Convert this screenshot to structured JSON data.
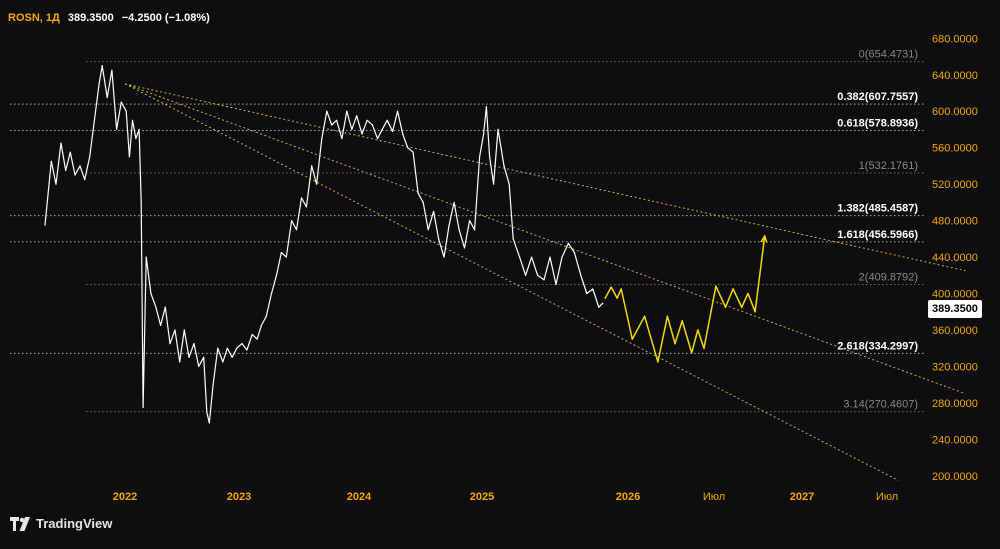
{
  "legend": {
    "symbol": "ROSN, 1Д",
    "price": "389.3500",
    "change": "−4.2500 (−1.08%)"
  },
  "last_price_badge": "389.3500",
  "branding": {
    "logo_text": "TradingView"
  },
  "colors": {
    "background": "#0e0e10",
    "price_line": "#ffffff",
    "forecast": "#f5d90a",
    "trendlines": "#c9b42a",
    "axis_text": "#f7a600",
    "fib_grid": "#8a8a8a"
  },
  "chart_data": {
    "type": "line",
    "ylim": [
      190,
      700
    ],
    "x_axis_ticks": [
      "2022",
      "2023",
      "2024",
      "2025",
      "2026",
      "Июл",
      "2027",
      "Июл"
    ],
    "y_axis_ticks": [
      "680.0000",
      "640.0000",
      "600.0000",
      "560.0000",
      "520.0000",
      "480.0000",
      "440.0000",
      "400.0000",
      "360.0000",
      "320.0000",
      "280.0000",
      "240.0000",
      "200.0000"
    ],
    "fib_levels": [
      {
        "label": "0(654.4731)",
        "value": 654.4731,
        "emphasis": false
      },
      {
        "label": "0.382(607.7557)",
        "value": 607.7557,
        "emphasis": true
      },
      {
        "label": "0.618(578.8936)",
        "value": 578.8936,
        "emphasis": true
      },
      {
        "label": "1(532.1761)",
        "value": 532.1761,
        "emphasis": false
      },
      {
        "label": "1.382(485.4587)",
        "value": 485.4587,
        "emphasis": true
      },
      {
        "label": "1.618(456.5966)",
        "value": 456.5966,
        "emphasis": true
      },
      {
        "label": "2(409.8792)",
        "value": 409.8792,
        "emphasis": false
      },
      {
        "label": "2.618(334.2997)",
        "value": 334.2997,
        "emphasis": true
      },
      {
        "label": "3.14(270.4607)",
        "value": 270.4607,
        "emphasis": false
      }
    ],
    "series": [
      {
        "values": [
          [
            "2021-04-20",
            475
          ],
          [
            "2021-05-10",
            545
          ],
          [
            "2021-05-25",
            520
          ],
          [
            "2021-06-10",
            565
          ],
          [
            "2021-06-25",
            535
          ],
          [
            "2021-07-10",
            555
          ],
          [
            "2021-07-25",
            530
          ],
          [
            "2021-08-10",
            540
          ],
          [
            "2021-08-25",
            525
          ],
          [
            "2021-09-10",
            550
          ],
          [
            "2021-09-25",
            590
          ],
          [
            "2021-10-10",
            630
          ],
          [
            "2021-10-20",
            650
          ],
          [
            "2021-11-05",
            615
          ],
          [
            "2021-11-20",
            645
          ],
          [
            "2021-12-05",
            580
          ],
          [
            "2021-12-20",
            610
          ],
          [
            "2022-01-05",
            600
          ],
          [
            "2022-01-15",
            550
          ],
          [
            "2022-01-25",
            590
          ],
          [
            "2022-02-05",
            570
          ],
          [
            "2022-02-15",
            580
          ],
          [
            "2022-02-22",
            500
          ],
          [
            "2022-02-28",
            275
          ],
          [
            "2022-03-10",
            440
          ],
          [
            "2022-03-25",
            400
          ],
          [
            "2022-04-10",
            385
          ],
          [
            "2022-04-25",
            365
          ],
          [
            "2022-05-10",
            385
          ],
          [
            "2022-05-25",
            345
          ],
          [
            "2022-06-10",
            360
          ],
          [
            "2022-06-25",
            325
          ],
          [
            "2022-07-10",
            360
          ],
          [
            "2022-07-25",
            330
          ],
          [
            "2022-08-10",
            345
          ],
          [
            "2022-08-25",
            320
          ],
          [
            "2022-09-10",
            330
          ],
          [
            "2022-09-20",
            270
          ],
          [
            "2022-09-28",
            258
          ],
          [
            "2022-10-10",
            300
          ],
          [
            "2022-10-25",
            340
          ],
          [
            "2022-11-10",
            325
          ],
          [
            "2022-11-25",
            340
          ],
          [
            "2022-12-10",
            330
          ],
          [
            "2022-12-25",
            340
          ],
          [
            "2023-01-10",
            345
          ],
          [
            "2023-01-25",
            338
          ],
          [
            "2023-02-10",
            355
          ],
          [
            "2023-02-25",
            350
          ],
          [
            "2023-03-10",
            365
          ],
          [
            "2023-03-25",
            375
          ],
          [
            "2023-04-10",
            400
          ],
          [
            "2023-04-25",
            420
          ],
          [
            "2023-05-10",
            445
          ],
          [
            "2023-05-25",
            440
          ],
          [
            "2023-06-10",
            480
          ],
          [
            "2023-06-25",
            470
          ],
          [
            "2023-07-10",
            505
          ],
          [
            "2023-07-25",
            495
          ],
          [
            "2023-08-10",
            540
          ],
          [
            "2023-08-25",
            520
          ],
          [
            "2023-09-10",
            570
          ],
          [
            "2023-09-25",
            600
          ],
          [
            "2023-10-10",
            585
          ],
          [
            "2023-10-25",
            590
          ],
          [
            "2023-11-10",
            570
          ],
          [
            "2023-11-25",
            600
          ],
          [
            "2023-12-10",
            580
          ],
          [
            "2023-12-25",
            595
          ],
          [
            "2024-01-10",
            575
          ],
          [
            "2024-01-25",
            590
          ],
          [
            "2024-02-10",
            585
          ],
          [
            "2024-02-25",
            570
          ],
          [
            "2024-03-10",
            580
          ],
          [
            "2024-03-25",
            590
          ],
          [
            "2024-04-10",
            578
          ],
          [
            "2024-04-25",
            600
          ],
          [
            "2024-05-10",
            575
          ],
          [
            "2024-05-25",
            560
          ],
          [
            "2024-06-10",
            555
          ],
          [
            "2024-06-25",
            510
          ],
          [
            "2024-07-10",
            500
          ],
          [
            "2024-07-25",
            470
          ],
          [
            "2024-08-10",
            490
          ],
          [
            "2024-08-25",
            460
          ],
          [
            "2024-09-10",
            440
          ],
          [
            "2024-09-25",
            475
          ],
          [
            "2024-10-10",
            500
          ],
          [
            "2024-10-25",
            470
          ],
          [
            "2024-11-10",
            450
          ],
          [
            "2024-11-25",
            480
          ],
          [
            "2024-12-10",
            470
          ],
          [
            "2024-12-25",
            550
          ],
          [
            "2025-01-05",
            575
          ],
          [
            "2025-01-12",
            605
          ],
          [
            "2025-01-20",
            550
          ],
          [
            "2025-01-30",
            520
          ],
          [
            "2025-02-10",
            580
          ],
          [
            "2025-02-25",
            540
          ],
          [
            "2025-03-10",
            520
          ],
          [
            "2025-03-20",
            460
          ],
          [
            "2025-04-05",
            440
          ],
          [
            "2025-04-20",
            420
          ],
          [
            "2025-05-05",
            440
          ],
          [
            "2025-05-20",
            420
          ],
          [
            "2025-06-05",
            415
          ],
          [
            "2025-06-20",
            440
          ],
          [
            "2025-07-05",
            410
          ],
          [
            "2025-07-20",
            440
          ],
          [
            "2025-08-05",
            455
          ],
          [
            "2025-08-20",
            445
          ],
          [
            "2025-09-05",
            420
          ],
          [
            "2025-09-20",
            400
          ],
          [
            "2025-10-05",
            405
          ],
          [
            "2025-10-20",
            385
          ],
          [
            "2025-10-30",
            389.35
          ]
        ]
      },
      {
        "values": [
          [
            "2025-11-05",
            395
          ],
          [
            "2025-11-20",
            407
          ],
          [
            "2025-12-05",
            395
          ],
          [
            "2025-12-15",
            405
          ],
          [
            "2026-01-10",
            350
          ],
          [
            "2026-02-05",
            375
          ],
          [
            "2026-03-05",
            325
          ],
          [
            "2026-03-25",
            375
          ],
          [
            "2026-04-10",
            345
          ],
          [
            "2026-04-25",
            370
          ],
          [
            "2026-05-15",
            335
          ],
          [
            "2026-05-28",
            360
          ],
          [
            "2026-06-10",
            340
          ],
          [
            "2026-07-05",
            408
          ],
          [
            "2026-07-25",
            385
          ],
          [
            "2026-08-10",
            405
          ],
          [
            "2026-08-28",
            385
          ],
          [
            "2026-09-10",
            400
          ],
          [
            "2026-09-25",
            380
          ],
          [
            "2026-10-15",
            463
          ]
        ]
      }
    ],
    "trendlines": [
      {
        "from": [
          "2022-01-01",
          630
        ],
        "to": [
          "2027-12-15",
          425
        ]
      },
      {
        "from": [
          "2022-01-01",
          630
        ],
        "to": [
          "2027-12-15",
          290
        ]
      },
      {
        "from": [
          "2022-01-01",
          630
        ],
        "to": [
          "2027-07-25",
          195
        ]
      }
    ]
  }
}
